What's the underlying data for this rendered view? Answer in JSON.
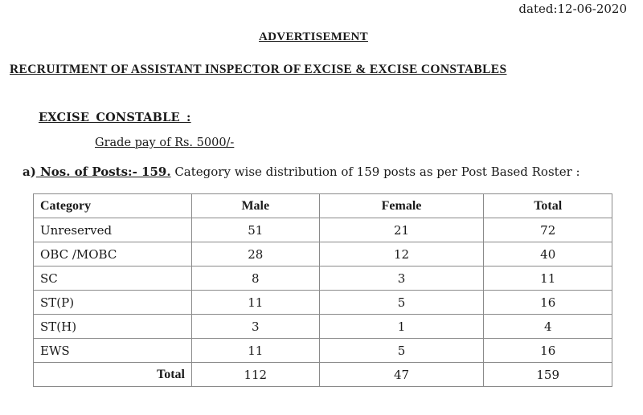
{
  "header": {
    "dated": "dated:12-06-2020",
    "title": "ADVERTISEMENT",
    "subtitle": "RECRUITMENT OF ASSISTANT INSPECTOR OF EXCISE & EXCISE CONSTABLES"
  },
  "section": {
    "heading": "EXCISE  CONSTABLE :",
    "grade_pay": "Grade pay of Rs. 5000/-",
    "posts_prefix": "a)",
    "posts_bold": " Nos. of Posts:- 159.",
    "posts_text": " Category wise distribution of 159 posts as per Post Based Roster :"
  },
  "table": {
    "headers": [
      "Category",
      "Male",
      "Female",
      "Total"
    ],
    "rows": [
      [
        "Unreserved",
        "51",
        "21",
        "72"
      ],
      [
        "OBC /MOBC",
        "28",
        "12",
        "40"
      ],
      [
        "SC",
        "8",
        "3",
        "11"
      ],
      [
        "ST(P)",
        "11",
        "5",
        "16"
      ],
      [
        "ST(H)",
        "3",
        "1",
        "4"
      ],
      [
        "EWS",
        "11",
        "5",
        "16"
      ]
    ],
    "total": [
      "Total",
      "112",
      "47",
      "159"
    ]
  }
}
